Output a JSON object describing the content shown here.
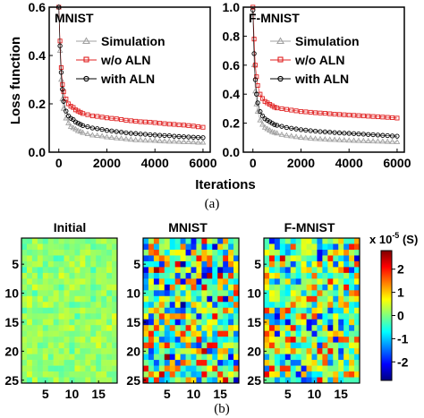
{
  "chart_data": [
    {
      "panel": "top-left",
      "type": "scatter",
      "title": "MNIST",
      "xlabel": "Iterations",
      "ylabel": "Loss function",
      "xlim": [
        -400,
        6300
      ],
      "ylim": [
        0.0,
        0.6
      ],
      "xticks": [
        0,
        2000,
        4000,
        6000
      ],
      "yticks": [
        0.0,
        0.2,
        0.4,
        0.6
      ],
      "legend_position": "top-right",
      "series": [
        {
          "name": "Simulation",
          "color": "#a0a0a0",
          "marker": "triangle",
          "points": [
            [
              0,
              0.6
            ],
            [
              50,
              0.42
            ],
            [
              100,
              0.3
            ],
            [
              150,
              0.22
            ],
            [
              200,
              0.18
            ],
            [
              300,
              0.14
            ],
            [
              400,
              0.12
            ],
            [
              500,
              0.105
            ],
            [
              600,
              0.1
            ],
            [
              700,
              0.095
            ],
            [
              800,
              0.088
            ],
            [
              900,
              0.085
            ],
            [
              1000,
              0.08
            ],
            [
              1200,
              0.075
            ],
            [
              1400,
              0.07
            ],
            [
              1600,
              0.068
            ],
            [
              1800,
              0.066
            ],
            [
              2000,
              0.062
            ],
            [
              2200,
              0.06
            ],
            [
              2400,
              0.058
            ],
            [
              2600,
              0.056
            ],
            [
              2800,
              0.054
            ],
            [
              3000,
              0.052
            ],
            [
              3200,
              0.05
            ],
            [
              3400,
              0.05
            ],
            [
              3600,
              0.048
            ],
            [
              3800,
              0.048
            ],
            [
              4000,
              0.047
            ],
            [
              4200,
              0.046
            ],
            [
              4400,
              0.045
            ],
            [
              4600,
              0.044
            ],
            [
              4800,
              0.044
            ],
            [
              5000,
              0.043
            ],
            [
              5200,
              0.042
            ],
            [
              5400,
              0.042
            ],
            [
              5600,
              0.041
            ],
            [
              5800,
              0.04
            ],
            [
              6000,
              0.04
            ]
          ]
        },
        {
          "name": "w/o ALN",
          "color": "#e02020",
          "marker": "square",
          "points": [
            [
              0,
              0.6
            ],
            [
              50,
              0.46
            ],
            [
              100,
              0.35
            ],
            [
              150,
              0.28
            ],
            [
              200,
              0.25
            ],
            [
              300,
              0.22
            ],
            [
              400,
              0.2
            ],
            [
              500,
              0.19
            ],
            [
              600,
              0.185
            ],
            [
              700,
              0.175
            ],
            [
              800,
              0.17
            ],
            [
              900,
              0.165
            ],
            [
              1000,
              0.16
            ],
            [
              1200,
              0.155
            ],
            [
              1400,
              0.15
            ],
            [
              1600,
              0.148
            ],
            [
              1800,
              0.145
            ],
            [
              2000,
              0.142
            ],
            [
              2200,
              0.14
            ],
            [
              2400,
              0.138
            ],
            [
              2600,
              0.135
            ],
            [
              2800,
              0.132
            ],
            [
              3000,
              0.13
            ],
            [
              3200,
              0.128
            ],
            [
              3400,
              0.126
            ],
            [
              3600,
              0.125
            ],
            [
              3800,
              0.124
            ],
            [
              4000,
              0.122
            ],
            [
              4200,
              0.12
            ],
            [
              4400,
              0.118
            ],
            [
              4600,
              0.116
            ],
            [
              4800,
              0.115
            ],
            [
              5000,
              0.113
            ],
            [
              5200,
              0.112
            ],
            [
              5400,
              0.11
            ],
            [
              5600,
              0.108
            ],
            [
              5800,
              0.105
            ],
            [
              6000,
              0.103
            ]
          ]
        },
        {
          "name": "with ALN",
          "color": "#000000",
          "marker": "circle",
          "points": [
            [
              0,
              0.6
            ],
            [
              50,
              0.44
            ],
            [
              100,
              0.33
            ],
            [
              150,
              0.26
            ],
            [
              200,
              0.21
            ],
            [
              300,
              0.17
            ],
            [
              400,
              0.15
            ],
            [
              500,
              0.14
            ],
            [
              600,
              0.135
            ],
            [
              700,
              0.125
            ],
            [
              800,
              0.12
            ],
            [
              900,
              0.115
            ],
            [
              1000,
              0.11
            ],
            [
              1200,
              0.105
            ],
            [
              1400,
              0.1
            ],
            [
              1600,
              0.097
            ],
            [
              1800,
              0.094
            ],
            [
              2000,
              0.09
            ],
            [
              2200,
              0.088
            ],
            [
              2400,
              0.085
            ],
            [
              2600,
              0.083
            ],
            [
              2800,
              0.08
            ],
            [
              3000,
              0.078
            ],
            [
              3200,
              0.077
            ],
            [
              3400,
              0.075
            ],
            [
              3600,
              0.074
            ],
            [
              3800,
              0.072
            ],
            [
              4000,
              0.071
            ],
            [
              4200,
              0.07
            ],
            [
              4400,
              0.069
            ],
            [
              4600,
              0.068
            ],
            [
              4800,
              0.066
            ],
            [
              5000,
              0.065
            ],
            [
              5200,
              0.064
            ],
            [
              5400,
              0.063
            ],
            [
              5600,
              0.062
            ],
            [
              5800,
              0.061
            ],
            [
              6000,
              0.06
            ]
          ]
        }
      ]
    },
    {
      "panel": "top-right",
      "type": "scatter",
      "title": "F-MNIST",
      "xlabel": "Iterations",
      "ylabel": "",
      "xlim": [
        -400,
        6300
      ],
      "ylim": [
        0.0,
        1.0
      ],
      "xticks": [
        0,
        2000,
        4000,
        6000
      ],
      "yticks": [
        0.0,
        0.2,
        0.4,
        0.6,
        0.8,
        1.0
      ],
      "legend_position": "top-right",
      "series": [
        {
          "name": "Simulation",
          "color": "#a0a0a0",
          "marker": "triangle",
          "points": [
            [
              0,
              0.95
            ],
            [
              50,
              0.6
            ],
            [
              100,
              0.42
            ],
            [
              150,
              0.33
            ],
            [
              200,
              0.28
            ],
            [
              300,
              0.22
            ],
            [
              400,
              0.19
            ],
            [
              500,
              0.17
            ],
            [
              600,
              0.16
            ],
            [
              700,
              0.15
            ],
            [
              800,
              0.14
            ],
            [
              900,
              0.135
            ],
            [
              1000,
              0.13
            ],
            [
              1200,
              0.12
            ],
            [
              1400,
              0.115
            ],
            [
              1600,
              0.11
            ],
            [
              1800,
              0.105
            ],
            [
              2000,
              0.1
            ],
            [
              2200,
              0.098
            ],
            [
              2400,
              0.095
            ],
            [
              2600,
              0.092
            ],
            [
              2800,
              0.09
            ],
            [
              3000,
              0.088
            ],
            [
              3200,
              0.086
            ],
            [
              3400,
              0.085
            ],
            [
              3600,
              0.083
            ],
            [
              3800,
              0.082
            ],
            [
              4000,
              0.08
            ],
            [
              4200,
              0.079
            ],
            [
              4400,
              0.078
            ],
            [
              4600,
              0.077
            ],
            [
              4800,
              0.076
            ],
            [
              5000,
              0.075
            ],
            [
              5200,
              0.074
            ],
            [
              5400,
              0.073
            ],
            [
              5600,
              0.072
            ],
            [
              5800,
              0.071
            ],
            [
              6000,
              0.07
            ]
          ]
        },
        {
          "name": "w/o ALN",
          "color": "#e02020",
          "marker": "square",
          "points": [
            [
              0,
              1.0
            ],
            [
              50,
              0.78
            ],
            [
              100,
              0.6
            ],
            [
              150,
              0.52
            ],
            [
              200,
              0.46
            ],
            [
              300,
              0.4
            ],
            [
              400,
              0.37
            ],
            [
              500,
              0.35
            ],
            [
              600,
              0.34
            ],
            [
              700,
              0.33
            ],
            [
              800,
              0.32
            ],
            [
              900,
              0.31
            ],
            [
              1000,
              0.305
            ],
            [
              1200,
              0.3
            ],
            [
              1400,
              0.295
            ],
            [
              1600,
              0.29
            ],
            [
              1800,
              0.285
            ],
            [
              2000,
              0.28
            ],
            [
              2200,
              0.278
            ],
            [
              2400,
              0.275
            ],
            [
              2600,
              0.272
            ],
            [
              2800,
              0.27
            ],
            [
              3000,
              0.268
            ],
            [
              3200,
              0.265
            ],
            [
              3400,
              0.262
            ],
            [
              3600,
              0.26
            ],
            [
              3800,
              0.258
            ],
            [
              4000,
              0.256
            ],
            [
              4200,
              0.254
            ],
            [
              4400,
              0.252
            ],
            [
              4600,
              0.25
            ],
            [
              4800,
              0.248
            ],
            [
              5000,
              0.246
            ],
            [
              5200,
              0.244
            ],
            [
              5400,
              0.242
            ],
            [
              5600,
              0.24
            ],
            [
              5800,
              0.238
            ],
            [
              6000,
              0.235
            ]
          ]
        },
        {
          "name": "with ALN",
          "color": "#000000",
          "marker": "circle",
          "points": [
            [
              0,
              0.98
            ],
            [
              50,
              0.68
            ],
            [
              100,
              0.5
            ],
            [
              150,
              0.4
            ],
            [
              200,
              0.34
            ],
            [
              300,
              0.28
            ],
            [
              400,
              0.25
            ],
            [
              500,
              0.23
            ],
            [
              600,
              0.22
            ],
            [
              700,
              0.21
            ],
            [
              800,
              0.2
            ],
            [
              900,
              0.19
            ],
            [
              1000,
              0.185
            ],
            [
              1200,
              0.178
            ],
            [
              1400,
              0.17
            ],
            [
              1600,
              0.165
            ],
            [
              1800,
              0.16
            ],
            [
              2000,
              0.155
            ],
            [
              2200,
              0.152
            ],
            [
              2400,
              0.148
            ],
            [
              2600,
              0.145
            ],
            [
              2800,
              0.142
            ],
            [
              3000,
              0.14
            ],
            [
              3200,
              0.138
            ],
            [
              3400,
              0.135
            ],
            [
              3600,
              0.133
            ],
            [
              3800,
              0.131
            ],
            [
              4000,
              0.13
            ],
            [
              4200,
              0.128
            ],
            [
              4400,
              0.126
            ],
            [
              4600,
              0.124
            ],
            [
              4800,
              0.122
            ],
            [
              5000,
              0.12
            ],
            [
              5200,
              0.118
            ],
            [
              5400,
              0.116
            ],
            [
              5600,
              0.114
            ],
            [
              5800,
              0.112
            ],
            [
              6000,
              0.11
            ]
          ]
        }
      ]
    },
    {
      "panel": "bottom-left",
      "type": "heatmap",
      "title": "Initial",
      "rows": 25,
      "cols": 18,
      "xticks": [
        5,
        10,
        15
      ],
      "yticks": [
        5,
        10,
        15,
        20,
        25
      ],
      "value_range": [
        -0.4,
        0.6
      ],
      "seed": 11
    },
    {
      "panel": "bottom-middle",
      "type": "heatmap",
      "title": "MNIST",
      "rows": 25,
      "cols": 18,
      "xticks": [
        5,
        10,
        15
      ],
      "yticks": [
        5,
        10,
        15,
        20,
        25
      ],
      "value_range": [
        -2.8,
        2.8
      ],
      "seed": 23
    },
    {
      "panel": "bottom-right",
      "type": "heatmap",
      "title": "F-MNIST",
      "rows": 25,
      "cols": 18,
      "xticks": [
        5,
        10,
        15
      ],
      "yticks": [
        5,
        10,
        15,
        20,
        25
      ],
      "value_range": [
        -2.5,
        2.5
      ],
      "seed": 37
    }
  ],
  "colorbar": {
    "unit_prefix": "x 10",
    "unit_exponent": "-5",
    "unit_suffix": " (S)",
    "range": [
      -2.8,
      2.8
    ],
    "ticks": [
      2,
      1,
      0,
      -1,
      -2
    ]
  },
  "captions": {
    "top": "(a)",
    "bottom": "(b)"
  }
}
